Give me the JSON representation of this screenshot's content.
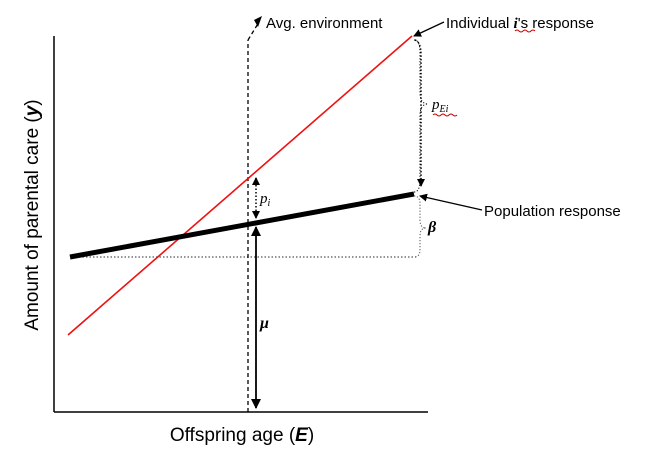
{
  "axes": {
    "x_label_prefix": "Offspring age (",
    "x_label_symbol": "E",
    "x_label_suffix": ")",
    "y_label_prefix": "Amount of parental care (",
    "y_label_symbol": "y",
    "y_label_suffix": ")"
  },
  "annotations": {
    "avg_environment": "Avg. environment",
    "individual_response_symbol": "i",
    "individual_response_text": "'s response",
    "individual_response_prefix": "Individual ",
    "population_response": "Population response"
  },
  "symbols": {
    "p_i_base": "p",
    "p_i_sub": "i",
    "p_Ei_base": "p",
    "p_Ei_sub": "Ei",
    "beta": "β",
    "mu": "μ"
  },
  "colors": {
    "individual_line": "#ee1111",
    "population_line": "#000000",
    "axis": "#000000",
    "dotted_guide": "#555555",
    "squiggle": "#cc0000"
  }
}
